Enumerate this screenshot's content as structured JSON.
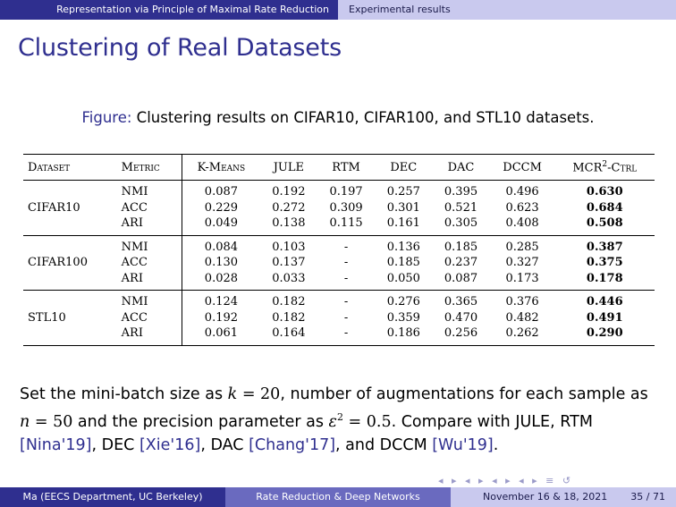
{
  "topbar": {
    "section_left": "Representation via Principle of Maximal Rate Reduction",
    "section_right": "Experimental results"
  },
  "frame_title": "Clustering of Real Datasets",
  "figure": {
    "caption_prefix": "Figure:",
    "caption_text": "Clustering results on CIFAR10, CIFAR100, and STL10 datasets."
  },
  "table": {
    "headers": {
      "dataset": "Dataset",
      "metric": "Metric",
      "kmeans": "K-Means",
      "jule": "JULE",
      "rtm": "RTM",
      "dec": "DEC",
      "dac": "DAC",
      "dccm": "DCCM",
      "mcr_base": "MCR",
      "mcr_sup": "2",
      "mcr_suffix": "-Ctrl"
    },
    "groups": [
      {
        "dataset": "CIFAR10",
        "rows": [
          {
            "metric": "NMI",
            "kmeans": "0.087",
            "jule": "0.192",
            "rtm": "0.197",
            "dec": "0.257",
            "dac": "0.395",
            "dccm": "0.496",
            "mcr": "0.630"
          },
          {
            "metric": "ACC",
            "kmeans": "0.229",
            "jule": "0.272",
            "rtm": "0.309",
            "dec": "0.301",
            "dac": "0.521",
            "dccm": "0.623",
            "mcr": "0.684"
          },
          {
            "metric": "ARI",
            "kmeans": "0.049",
            "jule": "0.138",
            "rtm": "0.115",
            "dec": "0.161",
            "dac": "0.305",
            "dccm": "0.408",
            "mcr": "0.508"
          }
        ]
      },
      {
        "dataset": "CIFAR100",
        "rows": [
          {
            "metric": "NMI",
            "kmeans": "0.084",
            "jule": "0.103",
            "rtm": "-",
            "dec": "0.136",
            "dac": "0.185",
            "dccm": "0.285",
            "mcr": "0.387"
          },
          {
            "metric": "ACC",
            "kmeans": "0.130",
            "jule": "0.137",
            "rtm": "-",
            "dec": "0.185",
            "dac": "0.237",
            "dccm": "0.327",
            "mcr": "0.375"
          },
          {
            "metric": "ARI",
            "kmeans": "0.028",
            "jule": "0.033",
            "rtm": "-",
            "dec": "0.050",
            "dac": "0.087",
            "dccm": "0.173",
            "mcr": "0.178"
          }
        ]
      },
      {
        "dataset": "STL10",
        "rows": [
          {
            "metric": "NMI",
            "kmeans": "0.124",
            "jule": "0.182",
            "rtm": "-",
            "dec": "0.276",
            "dac": "0.365",
            "dccm": "0.376",
            "mcr": "0.446"
          },
          {
            "metric": "ACC",
            "kmeans": "0.192",
            "jule": "0.182",
            "rtm": "-",
            "dec": "0.359",
            "dac": "0.470",
            "dccm": "0.482",
            "mcr": "0.491"
          },
          {
            "metric": "ARI",
            "kmeans": "0.061",
            "jule": "0.164",
            "rtm": "-",
            "dec": "0.186",
            "dac": "0.256",
            "dccm": "0.262",
            "mcr": "0.290"
          }
        ]
      }
    ]
  },
  "body": {
    "t1": "Set the mini-batch size as ",
    "m1_var": "k",
    "m1_rest": " = 20",
    "t2": ", number of augmentations for each sample as ",
    "m2_var": "n",
    "m2_rest": " = 50",
    "t3": " and the precision parameter as ",
    "m3_var": "ε",
    "m3_sup": "2",
    "m3_rest": " = 0.5",
    "t4": ". Compare with JULE, RTM ",
    "cite_nina": "[Nina'19]",
    "t5": ", DEC ",
    "cite_xie": "[Xie'16]",
    "t6": ", DAC ",
    "cite_chang": "[Chang'17]",
    "t7": ", and DCCM ",
    "cite_wu": "[Wu'19]",
    "t8": "."
  },
  "nav_symbols": "◂ ▸ ◂ ▸ ◂ ▸ ◂ ▸ ≡ ↺",
  "footer": {
    "author": "Ma (EECS Department, UC Berkeley)",
    "short_title": "Rate Reduction & Deep Networks",
    "date": "November 16 & 18, 2021",
    "page": "35 / 71"
  }
}
